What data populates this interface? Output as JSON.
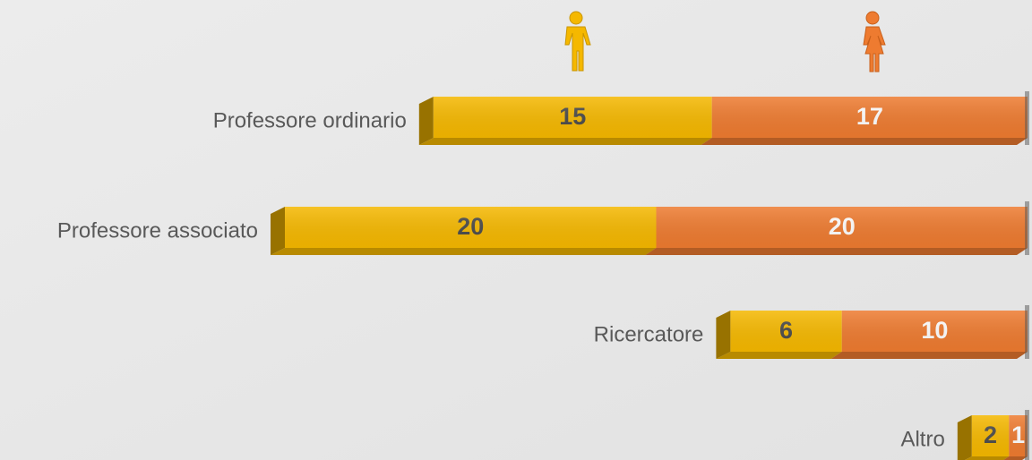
{
  "chart_data": {
    "type": "bar",
    "orientation": "horizontal",
    "stacked": true,
    "categories": [
      "Professore ordinario",
      "Professore associato",
      "Ricercatore",
      "Altro"
    ],
    "series": [
      {
        "color": "#f5b800",
        "values": [
          15,
          20,
          6,
          2
        ]
      },
      {
        "color": "#ee7b30",
        "values": [
          17,
          20,
          10,
          1
        ]
      }
    ]
  }
}
